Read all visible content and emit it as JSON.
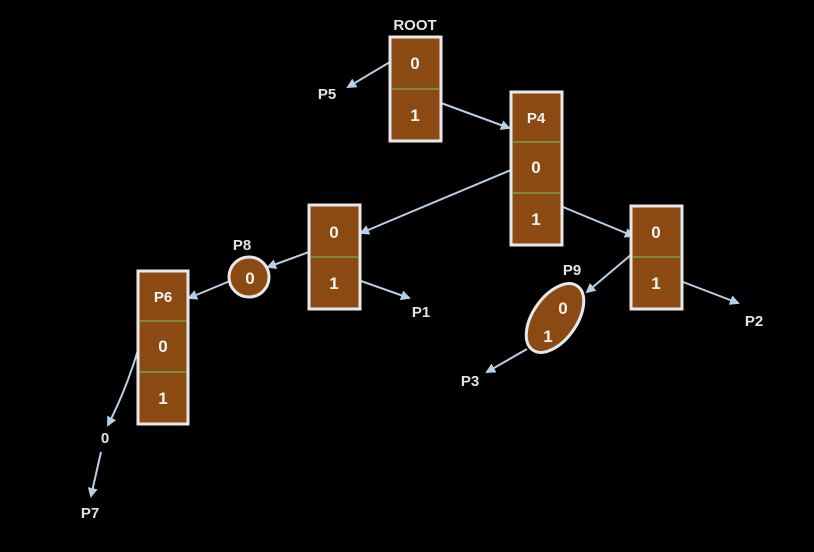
{
  "root": {
    "title": "ROOT",
    "cells": [
      "0",
      "1"
    ]
  },
  "p4": {
    "cells": [
      "P4",
      "0",
      "1"
    ]
  },
  "nodeA": {
    "cells": [
      "0",
      "1"
    ]
  },
  "nodeB": {
    "cells": [
      "0",
      "1"
    ]
  },
  "p6": {
    "cells": [
      "P6",
      "0",
      "1"
    ]
  },
  "p8": {
    "label": "P8",
    "value": "0"
  },
  "p9": {
    "label": "P9",
    "values": [
      "0",
      "1"
    ]
  },
  "leaves": {
    "p5": "P5",
    "p1": "P1",
    "p2": "P2",
    "p3": "P3",
    "p7": "P7",
    "zero": "0"
  },
  "colors": {
    "cell_fill": "#8a4a12",
    "border": "#e8e8ec",
    "edge": "#b8d0e6",
    "background": "#000000"
  }
}
